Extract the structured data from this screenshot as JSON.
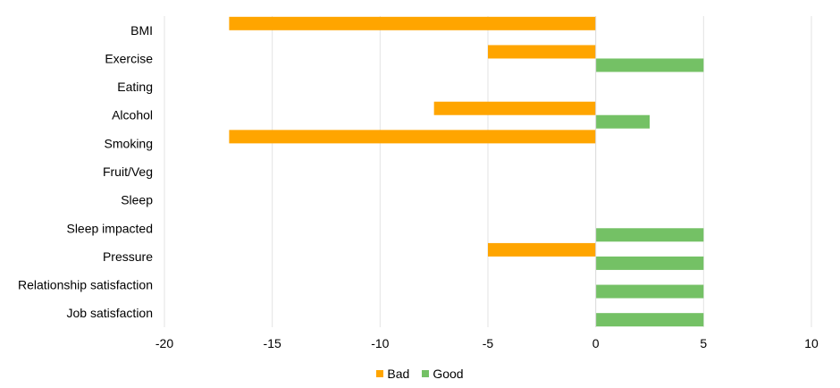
{
  "chart_data": {
    "type": "bar",
    "orientation": "horizontal",
    "categories": [
      "BMI",
      "Exercise",
      "Eating",
      "Alcohol",
      "Smoking",
      "Fruit/Veg",
      "Sleep",
      "Sleep impacted",
      "Pressure",
      "Relationship satisfaction",
      "Job satisfaction"
    ],
    "series": [
      {
        "name": "Bad",
        "color": "#FFA500",
        "values": [
          -17,
          -5,
          0,
          -7.5,
          -17,
          0,
          0,
          0,
          -5,
          0,
          0
        ]
      },
      {
        "name": "Good",
        "color": "#74C165",
        "values": [
          0,
          5,
          0,
          2.5,
          0,
          0,
          0,
          5,
          5,
          5,
          5
        ]
      }
    ],
    "xlim": [
      -20,
      10
    ],
    "xticks": [
      -20,
      -15,
      -10,
      -5,
      0,
      5,
      10
    ],
    "grid": true,
    "legend_position": "bottom"
  }
}
